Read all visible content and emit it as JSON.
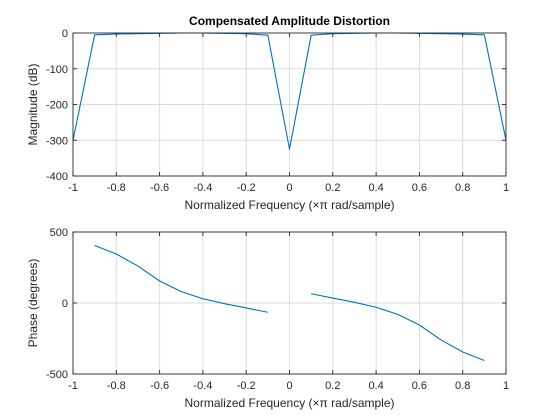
{
  "chart_data": [
    {
      "type": "line",
      "title": "Compensated Amplitude Distortion",
      "xlabel": "Normalized Frequency  (×π rad/sample)",
      "ylabel": "Magnitude (dB)",
      "xlim": [
        -1,
        1
      ],
      "ylim": [
        -400,
        0
      ],
      "xticks": [
        -1,
        -0.8,
        -0.6,
        -0.4,
        -0.2,
        0,
        0.2,
        0.4,
        0.6,
        0.8,
        1
      ],
      "xtick_labels": [
        "-1",
        "-0.8",
        "-0.6",
        "-0.4",
        "-0.2",
        "0",
        "0.2",
        "0.4",
        "0.6",
        "0.8",
        "1"
      ],
      "yticks": [
        0,
        -100,
        -200,
        -300,
        -400
      ],
      "ytick_labels": [
        "0",
        "-100",
        "-200",
        "-300",
        "-400"
      ],
      "grid": true,
      "series": [
        {
          "color": "#0072bd",
          "segments": [
            [
              [
                -1,
                -300
              ],
              [
                -0.9,
                -5
              ],
              [
                -0.8,
                -3
              ],
              [
                -0.7,
                -2
              ],
              [
                -0.6,
                -1
              ],
              [
                -0.5,
                0
              ],
              [
                -0.4,
                0
              ],
              [
                -0.3,
                -1
              ],
              [
                -0.2,
                -2
              ],
              [
                -0.1,
                -6
              ],
              [
                0,
                -325
              ],
              [
                0.1,
                -6
              ],
              [
                0.2,
                -2
              ],
              [
                0.3,
                -1
              ],
              [
                0.4,
                0
              ],
              [
                0.5,
                0
              ],
              [
                0.6,
                -1
              ],
              [
                0.7,
                -2
              ],
              [
                0.8,
                -3
              ],
              [
                0.9,
                -5
              ],
              [
                1,
                -300
              ]
            ]
          ]
        }
      ]
    },
    {
      "type": "line",
      "title": "",
      "xlabel": "Normalized Frequency  (×π rad/sample)",
      "ylabel": "Phase (degrees)",
      "xlim": [
        -1,
        1
      ],
      "ylim": [
        -500,
        500
      ],
      "xticks": [
        -1,
        -0.8,
        -0.6,
        -0.4,
        -0.2,
        0,
        0.2,
        0.4,
        0.6,
        0.8,
        1
      ],
      "xtick_labels": [
        "-1",
        "-0.8",
        "-0.6",
        "-0.4",
        "-0.2",
        "0",
        "0.2",
        "0.4",
        "0.6",
        "0.8",
        "1"
      ],
      "yticks": [
        500,
        0,
        -500
      ],
      "ytick_labels": [
        "500",
        "0",
        "-500"
      ],
      "grid": true,
      "series": [
        {
          "color": "#0072bd",
          "segments": [
            [
              [
                -0.9,
                405
              ],
              [
                -0.8,
                345
              ],
              [
                -0.7,
                260
              ],
              [
                -0.6,
                155
              ],
              [
                -0.5,
                80
              ],
              [
                -0.4,
                30
              ],
              [
                -0.3,
                -5
              ],
              [
                -0.2,
                -35
              ],
              [
                -0.1,
                -65
              ]
            ],
            [
              [
                0.1,
                65
              ],
              [
                0.2,
                35
              ],
              [
                0.3,
                5
              ],
              [
                0.4,
                -30
              ],
              [
                0.5,
                -80
              ],
              [
                0.6,
                -155
              ],
              [
                0.7,
                -260
              ],
              [
                0.8,
                -345
              ],
              [
                0.9,
                -405
              ]
            ]
          ]
        }
      ]
    }
  ]
}
